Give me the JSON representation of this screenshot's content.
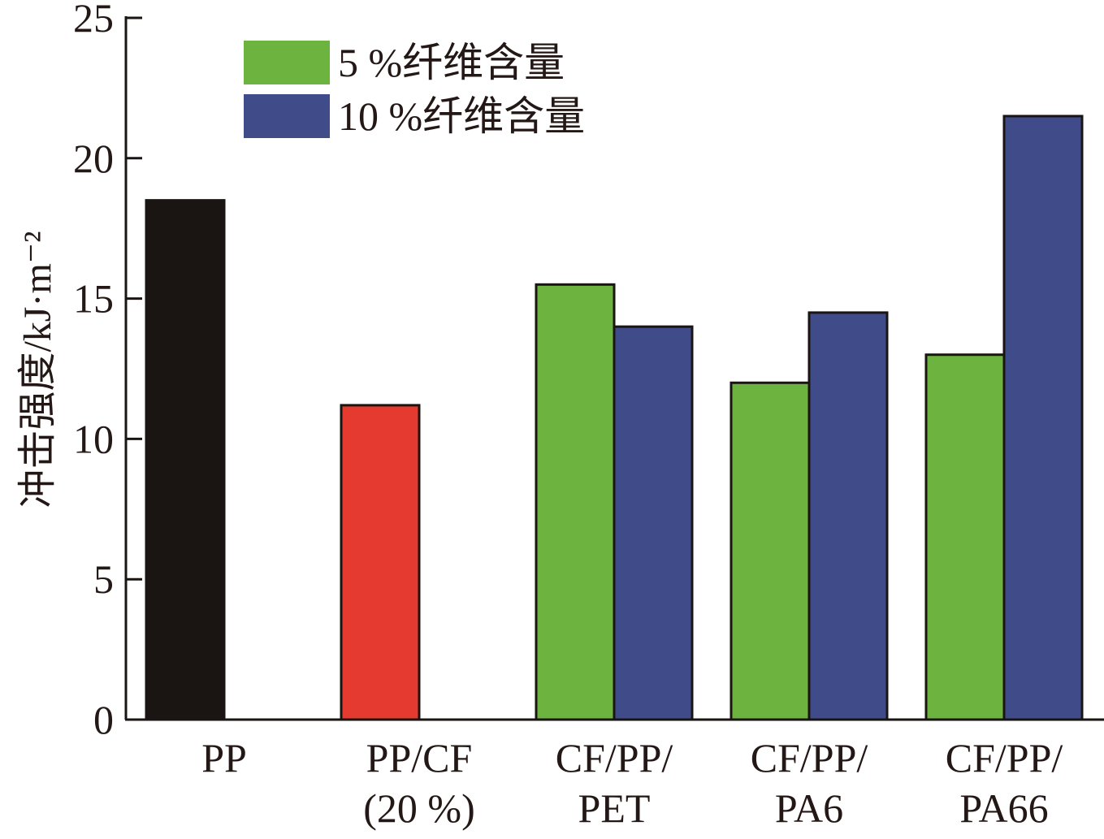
{
  "chart_data": {
    "type": "bar",
    "title": "",
    "ylabel": "冲击强度/kJ·m⁻²",
    "ylim": [
      0,
      25
    ],
    "yticks": [
      "0",
      "5",
      "10",
      "15",
      "20",
      "25"
    ],
    "grid": false,
    "legend_position": "top-left",
    "categories": [
      {
        "lines": [
          "PP"
        ]
      },
      {
        "lines": [
          "PP/CF",
          "(20 %)"
        ]
      },
      {
        "lines": [
          "CF/PP/",
          "PET"
        ]
      },
      {
        "lines": [
          "CF/PP/",
          "PA6"
        ]
      },
      {
        "lines": [
          "CF/PP/",
          "PA66"
        ]
      }
    ],
    "bars": [
      {
        "category": 0,
        "slot": 0,
        "value": 18.5,
        "color": "#1a1512"
      },
      {
        "category": 1,
        "slot": 0,
        "value": 11.2,
        "color": "#e53a2f"
      },
      {
        "category": 2,
        "slot": 0,
        "value": 15.5,
        "color": "#6db33f",
        "series": "5 %纤维含量"
      },
      {
        "category": 2,
        "slot": 1,
        "value": 14.0,
        "color": "#404b8a",
        "series": "10 %纤维含量"
      },
      {
        "category": 3,
        "slot": 0,
        "value": 12.0,
        "color": "#6db33f",
        "series": "5 %纤维含量"
      },
      {
        "category": 3,
        "slot": 1,
        "value": 14.5,
        "color": "#404b8a",
        "series": "10 %纤维含量"
      },
      {
        "category": 4,
        "slot": 0,
        "value": 13.0,
        "color": "#6db33f",
        "series": "5 %纤维含量"
      },
      {
        "category": 4,
        "slot": 1,
        "value": 21.5,
        "color": "#404b8a",
        "series": "10 %纤维含量"
      }
    ],
    "legend": [
      {
        "name": "5 %纤维含量",
        "color": "#6db33f"
      },
      {
        "name": "10 %纤维含量",
        "color": "#404b8a"
      }
    ]
  }
}
